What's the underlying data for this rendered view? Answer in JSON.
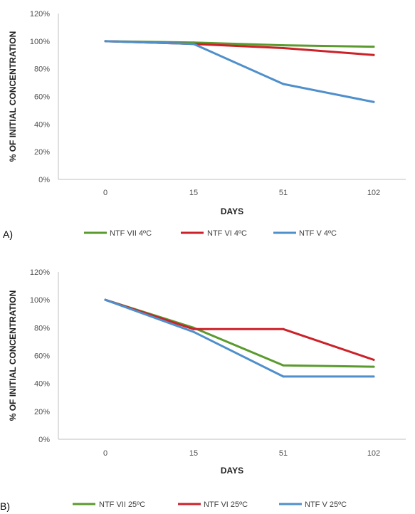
{
  "chart_data": [
    {
      "type": "line",
      "panel_label": "A)",
      "categories": [
        "0",
        "15",
        "51",
        "102"
      ],
      "xlabel": "DAYS",
      "ylabel": "% OF INITIAL CONCENTRATION",
      "ylim": [
        0,
        120
      ],
      "yticks": [
        "0%",
        "20%",
        "40%",
        "60%",
        "80%",
        "100%",
        "120%"
      ],
      "grid": false,
      "legend_position": "bottom",
      "series": [
        {
          "name": "NTF VII 4ºC",
          "color": "#5a9a2e",
          "values": [
            100,
            99,
            97,
            96
          ]
        },
        {
          "name": "NTF VI 4ºC",
          "color": "#cc2128",
          "values": [
            100,
            98,
            95,
            90
          ]
        },
        {
          "name": "NTF V 4ºC",
          "color": "#4f8fcb",
          "values": [
            100,
            98,
            69,
            56
          ]
        }
      ]
    },
    {
      "type": "line",
      "panel_label": "B)",
      "categories": [
        "0",
        "15",
        "51",
        "102"
      ],
      "xlabel": "DAYS",
      "ylabel": "% OF INITIAL CONCENTRATION",
      "ylim": [
        0,
        120
      ],
      "yticks": [
        "0%",
        "20%",
        "40%",
        "60%",
        "80%",
        "100%",
        "120%"
      ],
      "grid": false,
      "legend_position": "bottom",
      "series": [
        {
          "name": "NTF VII 25ºC",
          "color": "#5a9a2e",
          "values": [
            100,
            80,
            53,
            52
          ]
        },
        {
          "name": "NTF VI 25ºC",
          "color": "#cc2128",
          "values": [
            100,
            79,
            79,
            57
          ]
        },
        {
          "name": "NTF V 25ºC",
          "color": "#4f8fcb",
          "values": [
            100,
            77,
            45,
            45
          ]
        }
      ]
    }
  ]
}
